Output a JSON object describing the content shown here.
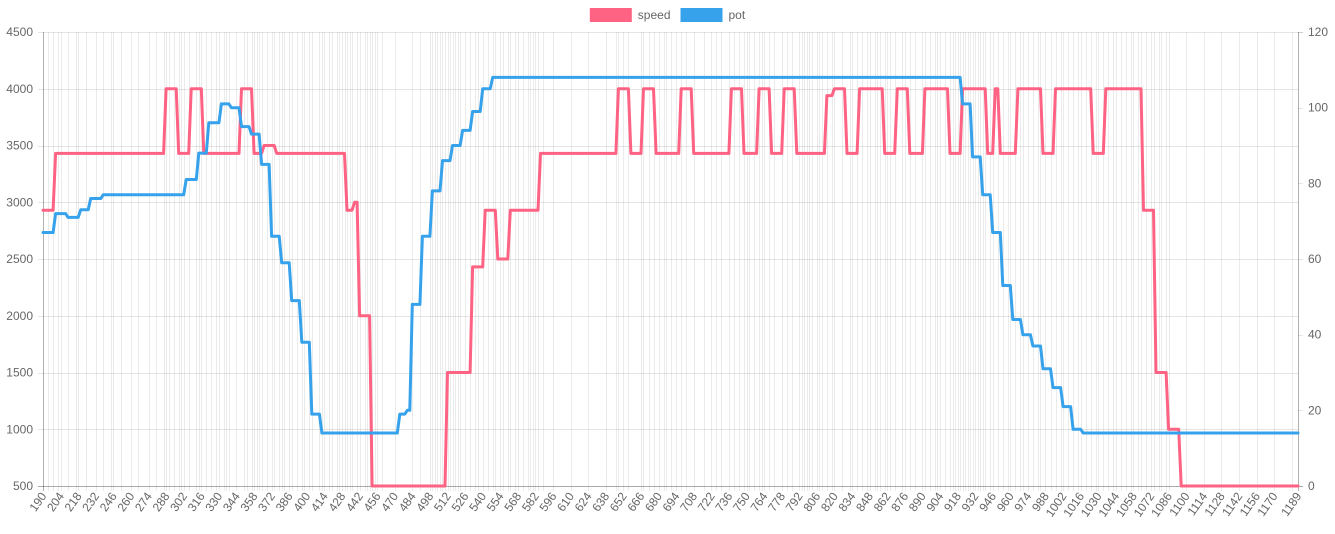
{
  "chart_data": {
    "type": "line",
    "grid": true,
    "legend_position": "top-center",
    "x": [
      190,
      194,
      198,
      202,
      204,
      210,
      216,
      218,
      224,
      232,
      238,
      244,
      246,
      252,
      260,
      266,
      274,
      280,
      286,
      288,
      290,
      294,
      298,
      300,
      302,
      306,
      312,
      314,
      316,
      320,
      324,
      328,
      330,
      334,
      336,
      338,
      344,
      350,
      352,
      356,
      358,
      360,
      362,
      364,
      368,
      372,
      374,
      378,
      380,
      382,
      386,
      388,
      392,
      396,
      398,
      402,
      404,
      410,
      412,
      414,
      418,
      420,
      424,
      426,
      428,
      430,
      432,
      434,
      436,
      440,
      442,
      446,
      448,
      450,
      452,
      454,
      456,
      460,
      470,
      484,
      490,
      498,
      500,
      502,
      504,
      506,
      508,
      510,
      512,
      514,
      516,
      518,
      520,
      522,
      526,
      530,
      534,
      536,
      540,
      544,
      548,
      550,
      554,
      556,
      560,
      562,
      566,
      568,
      572,
      576,
      578,
      580,
      582,
      584,
      588,
      596,
      610,
      624,
      638,
      646,
      648,
      652,
      656,
      666,
      668,
      672,
      676,
      680,
      684,
      686,
      690,
      694,
      698,
      702,
      708,
      716,
      722,
      726,
      730,
      736,
      740,
      744,
      748,
      750,
      752,
      756,
      760,
      762,
      764,
      768,
      772,
      778,
      782,
      786,
      792,
      794,
      796,
      798,
      800,
      802,
      806,
      808,
      810,
      814,
      818,
      820,
      826,
      832,
      834,
      838,
      842,
      846,
      848,
      852,
      854,
      856,
      860,
      862,
      864,
      868,
      874,
      876,
      880,
      884,
      890,
      892,
      896,
      900,
      902,
      904,
      908,
      912,
      914,
      916,
      918,
      920,
      922,
      924,
      926,
      928,
      930,
      932,
      934,
      936,
      938,
      940,
      944,
      946,
      950,
      954,
      958,
      960,
      964,
      968,
      970,
      974,
      978,
      982,
      984,
      988,
      992,
      996,
      1000,
      1002,
      1006,
      1010,
      1014,
      1016,
      1020,
      1024,
      1028,
      1030,
      1034,
      1038,
      1042,
      1044,
      1048,
      1052,
      1056,
      1058,
      1062,
      1064,
      1068,
      1072,
      1074,
      1078,
      1080,
      1084,
      1086,
      1100,
      1114,
      1128,
      1142,
      1156,
      1170,
      1184,
      1189
    ],
    "x_ticks": [
      190,
      204,
      218,
      232,
      246,
      260,
      274,
      288,
      302,
      316,
      330,
      344,
      358,
      372,
      386,
      400,
      414,
      428,
      442,
      456,
      470,
      484,
      498,
      512,
      526,
      540,
      554,
      568,
      582,
      596,
      610,
      624,
      638,
      652,
      666,
      680,
      694,
      708,
      722,
      736,
      750,
      764,
      778,
      792,
      806,
      820,
      834,
      848,
      862,
      876,
      890,
      904,
      918,
      932,
      946,
      960,
      974,
      988,
      1002,
      1016,
      1030,
      1044,
      1058,
      1072,
      1086,
      1100,
      1114,
      1128,
      1142,
      1156,
      1170,
      1189
    ],
    "y_left": {
      "ticks": [
        500,
        1000,
        1500,
        2000,
        2500,
        3000,
        3500,
        4000,
        4500
      ],
      "range": [
        500,
        4500
      ]
    },
    "y_right": {
      "ticks": [
        0,
        20,
        40,
        60,
        80,
        100,
        120
      ],
      "range": [
        0,
        120
      ]
    },
    "series": [
      {
        "name": "speed",
        "color": "#ff6384",
        "axis": "left",
        "points": [
          [
            190,
            2930
          ],
          [
            198,
            2930
          ],
          [
            200,
            3430
          ],
          [
            286,
            3430
          ],
          [
            288,
            4000
          ],
          [
            296,
            4000
          ],
          [
            298,
            3430
          ],
          [
            306,
            3430
          ],
          [
            308,
            4000
          ],
          [
            316,
            4000
          ],
          [
            318,
            3430
          ],
          [
            346,
            3430
          ],
          [
            348,
            4000
          ],
          [
            356,
            4000
          ],
          [
            358,
            3430
          ],
          [
            364,
            3430
          ],
          [
            366,
            3500
          ],
          [
            374,
            3500
          ],
          [
            376,
            3430
          ],
          [
            430,
            3430
          ],
          [
            432,
            2930
          ],
          [
            436,
            2930
          ],
          [
            438,
            3000
          ],
          [
            440,
            3000
          ],
          [
            442,
            2000
          ],
          [
            450,
            2000
          ],
          [
            452,
            500
          ],
          [
            510,
            500
          ],
          [
            512,
            1500
          ],
          [
            530,
            1500
          ],
          [
            532,
            2430
          ],
          [
            540,
            2430
          ],
          [
            542,
            2930
          ],
          [
            550,
            2930
          ],
          [
            552,
            2500
          ],
          [
            560,
            2500
          ],
          [
            562,
            2930
          ],
          [
            584,
            2930
          ],
          [
            586,
            3430
          ],
          [
            646,
            3430
          ],
          [
            648,
            4000
          ],
          [
            656,
            4000
          ],
          [
            658,
            3430
          ],
          [
            666,
            3430
          ],
          [
            668,
            4000
          ],
          [
            676,
            4000
          ],
          [
            678,
            3430
          ],
          [
            696,
            3430
          ],
          [
            698,
            4000
          ],
          [
            706,
            4000
          ],
          [
            708,
            3430
          ],
          [
            736,
            3430
          ],
          [
            738,
            4000
          ],
          [
            746,
            4000
          ],
          [
            748,
            3430
          ],
          [
            758,
            3430
          ],
          [
            760,
            4000
          ],
          [
            768,
            4000
          ],
          [
            770,
            3430
          ],
          [
            778,
            3430
          ],
          [
            780,
            4000
          ],
          [
            788,
            4000
          ],
          [
            790,
            3430
          ],
          [
            812,
            3430
          ],
          [
            814,
            3940
          ],
          [
            818,
            3940
          ],
          [
            820,
            4000
          ],
          [
            828,
            4000
          ],
          [
            830,
            3430
          ],
          [
            838,
            3430
          ],
          [
            840,
            4000
          ],
          [
            858,
            4000
          ],
          [
            860,
            3430
          ],
          [
            868,
            3430
          ],
          [
            870,
            4000
          ],
          [
            878,
            4000
          ],
          [
            880,
            3430
          ],
          [
            890,
            3430
          ],
          [
            892,
            4000
          ],
          [
            910,
            4000
          ],
          [
            912,
            3430
          ],
          [
            920,
            3430
          ],
          [
            922,
            4000
          ],
          [
            940,
            4000
          ],
          [
            942,
            3430
          ],
          [
            946,
            3430
          ],
          [
            948,
            4000
          ],
          [
            950,
            4000
          ],
          [
            952,
            3430
          ],
          [
            964,
            3430
          ],
          [
            966,
            4000
          ],
          [
            984,
            4000
          ],
          [
            986,
            3430
          ],
          [
            994,
            3430
          ],
          [
            996,
            4000
          ],
          [
            1024,
            4000
          ],
          [
            1026,
            3430
          ],
          [
            1034,
            3430
          ],
          [
            1036,
            4000
          ],
          [
            1064,
            4000
          ],
          [
            1066,
            2930
          ],
          [
            1074,
            2930
          ],
          [
            1076,
            1500
          ],
          [
            1084,
            1500
          ],
          [
            1086,
            1000
          ],
          [
            1094,
            1000
          ],
          [
            1096,
            500
          ],
          [
            1189,
            500
          ]
        ]
      },
      {
        "name": "pot",
        "color": "#36a2eb",
        "axis": "right",
        "points": [
          [
            190,
            67
          ],
          [
            198,
            67
          ],
          [
            200,
            72
          ],
          [
            208,
            72
          ],
          [
            210,
            71
          ],
          [
            218,
            71
          ],
          [
            220,
            73
          ],
          [
            226,
            73
          ],
          [
            228,
            76
          ],
          [
            236,
            76
          ],
          [
            238,
            77
          ],
          [
            302,
            77
          ],
          [
            304,
            81
          ],
          [
            312,
            81
          ],
          [
            314,
            88
          ],
          [
            320,
            88
          ],
          [
            322,
            96
          ],
          [
            330,
            96
          ],
          [
            332,
            101
          ],
          [
            338,
            101
          ],
          [
            340,
            100
          ],
          [
            346,
            100
          ],
          [
            348,
            95
          ],
          [
            354,
            95
          ],
          [
            356,
            93
          ],
          [
            362,
            93
          ],
          [
            364,
            85
          ],
          [
            370,
            85
          ],
          [
            372,
            66
          ],
          [
            378,
            66
          ],
          [
            380,
            59
          ],
          [
            386,
            59
          ],
          [
            388,
            49
          ],
          [
            394,
            49
          ],
          [
            396,
            38
          ],
          [
            402,
            38
          ],
          [
            404,
            19
          ],
          [
            410,
            19
          ],
          [
            412,
            14
          ],
          [
            472,
            14
          ],
          [
            474,
            19
          ],
          [
            478,
            19
          ],
          [
            480,
            20
          ],
          [
            482,
            20
          ],
          [
            484,
            48
          ],
          [
            490,
            48
          ],
          [
            492,
            66
          ],
          [
            498,
            66
          ],
          [
            500,
            78
          ],
          [
            506,
            78
          ],
          [
            508,
            86
          ],
          [
            514,
            86
          ],
          [
            516,
            90
          ],
          [
            522,
            90
          ],
          [
            524,
            94
          ],
          [
            530,
            94
          ],
          [
            532,
            99
          ],
          [
            538,
            99
          ],
          [
            540,
            105
          ],
          [
            546,
            105
          ],
          [
            548,
            108
          ],
          [
            920,
            108
          ],
          [
            922,
            101
          ],
          [
            928,
            101
          ],
          [
            930,
            87
          ],
          [
            936,
            87
          ],
          [
            938,
            77
          ],
          [
            944,
            77
          ],
          [
            946,
            67
          ],
          [
            952,
            67
          ],
          [
            954,
            53
          ],
          [
            960,
            53
          ],
          [
            962,
            44
          ],
          [
            968,
            44
          ],
          [
            970,
            40
          ],
          [
            976,
            40
          ],
          [
            978,
            37
          ],
          [
            984,
            37
          ],
          [
            986,
            31
          ],
          [
            992,
            31
          ],
          [
            994,
            26
          ],
          [
            1000,
            26
          ],
          [
            1002,
            21
          ],
          [
            1008,
            21
          ],
          [
            1010,
            15
          ],
          [
            1016,
            15
          ],
          [
            1018,
            14
          ],
          [
            1189,
            14
          ]
        ]
      }
    ]
  }
}
